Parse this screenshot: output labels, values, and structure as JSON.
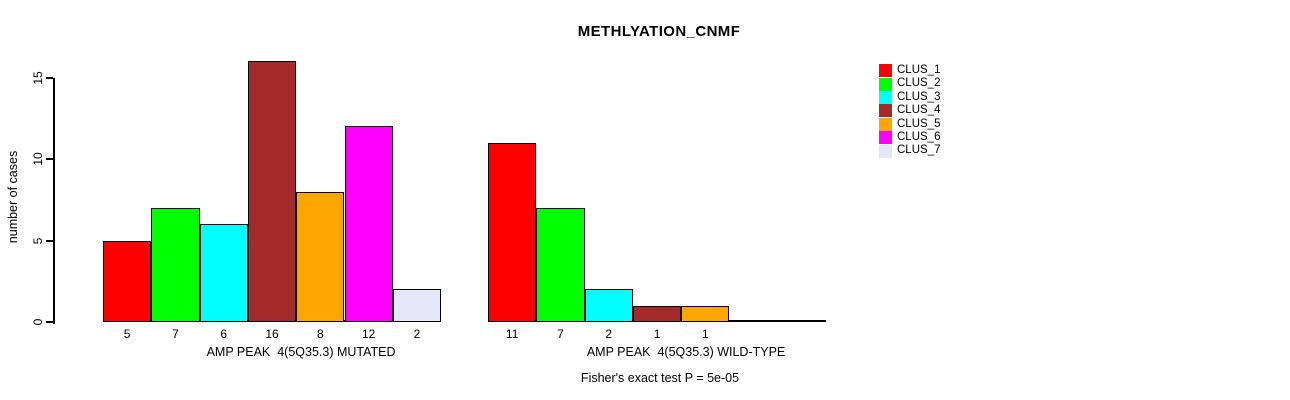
{
  "chart_data": {
    "type": "bar",
    "title": "METHLYATION_CNMF",
    "ylabel": "number of cases",
    "xlabel": "",
    "yticks": [
      0,
      5,
      10,
      15
    ],
    "ylim": [
      0,
      16
    ],
    "grid": false,
    "legend_position": "right",
    "legend": [
      "CLUS_1",
      "CLUS_2",
      "CLUS_3",
      "CLUS_4",
      "CLUS_5",
      "CLUS_6",
      "CLUS_7"
    ],
    "colors": [
      "#ff0000",
      "#00ff00",
      "#00ffff",
      "#a52a2a",
      "#ffa500",
      "#ff00ff",
      "#e6e6fa"
    ],
    "groups": [
      {
        "label": "AMP PEAK  4(5Q35.3) MUTATED",
        "values": [
          5,
          7,
          6,
          16,
          8,
          12,
          2
        ]
      },
      {
        "label": "AMP PEAK  4(5Q35.3) WILD-TYPE",
        "values": [
          11,
          7,
          2,
          1,
          1,
          0,
          0
        ]
      }
    ],
    "annotation": "Fisher's exact test P = 5e-05"
  }
}
